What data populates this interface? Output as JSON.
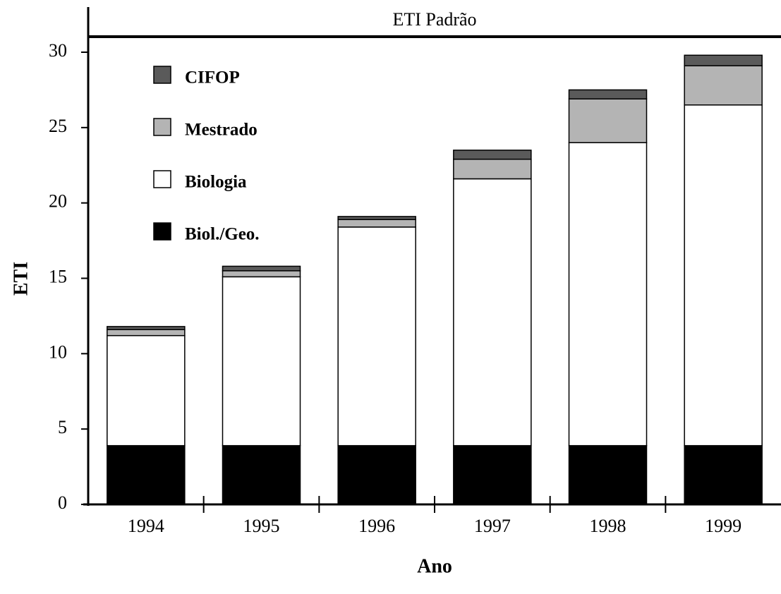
{
  "chart_data": {
    "type": "stacked_bar",
    "title": "ETI Padrão",
    "x_label": "Ano",
    "y_label": "ETI",
    "categories": [
      "1994",
      "1995",
      "1996",
      "1997",
      "1998",
      "1999"
    ],
    "series": [
      {
        "name": "Biol./Geo.",
        "color": "#000000",
        "values": [
          3.9,
          3.9,
          3.9,
          3.9,
          3.9,
          3.9
        ]
      },
      {
        "name": "Biologia",
        "color": "#ffffff",
        "values": [
          7.3,
          11.2,
          14.5,
          17.7,
          20.1,
          22.6
        ]
      },
      {
        "name": "Mestrado",
        "color": "#b4b4b4",
        "values": [
          0.4,
          0.4,
          0.5,
          1.3,
          2.9,
          2.6
        ]
      },
      {
        "name": "CIFOP",
        "color": "#5a5a5a",
        "values": [
          0.2,
          0.3,
          0.2,
          0.6,
          0.6,
          0.7
        ]
      }
    ],
    "ylim": [
      0,
      30
    ],
    "yticks": [
      0,
      5,
      10,
      15,
      20,
      25,
      30
    ],
    "legend": "upper left"
  }
}
